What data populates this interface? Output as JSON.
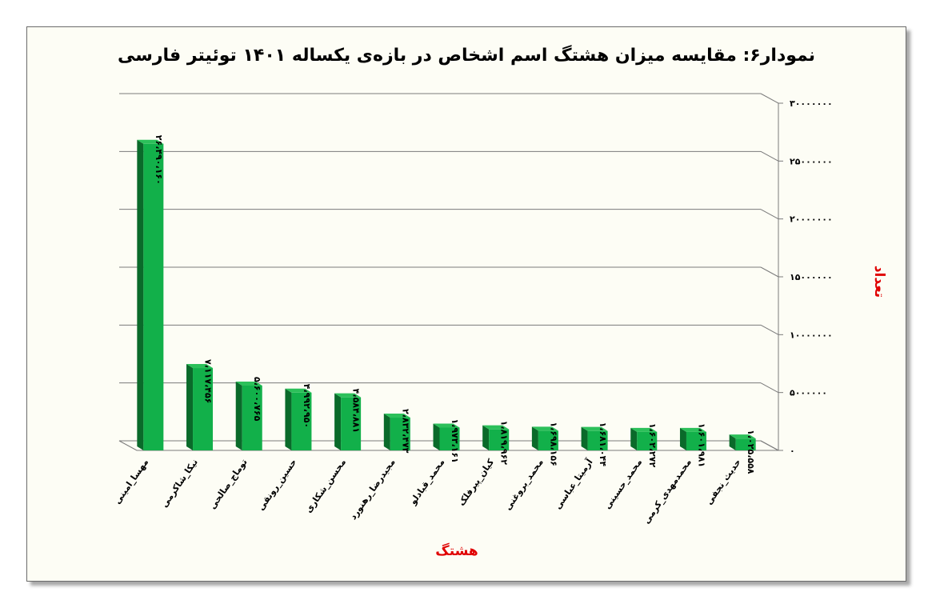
{
  "chart_data": {
    "type": "bar",
    "title": "نمودار۶: مقایسه میزان هشتگ اسم اشخاص در بازه‌ی یکساله ۱۴۰۱ توئیتر فارسی",
    "xlabel": "هشتگ",
    "ylabel": "تعداد",
    "ylim": [
      0,
      30000000
    ],
    "yticks": [
      0,
      5000000,
      10000000,
      15000000,
      20000000,
      25000000,
      30000000
    ],
    "ytick_labels": [
      "۰",
      "۵۰۰۰۰۰۰",
      "۱۰۰۰۰۰۰۰",
      "۱۵۰۰۰۰۰۰",
      "۲۰۰۰۰۰۰۰",
      "۲۵۰۰۰۰۰۰",
      "۳۰۰۰۰۰۰۰"
    ],
    "categories": [
      "مهسا_امینی",
      "نیکا_شاکرمی",
      "توماج_صالحی",
      "حسین_رونقی",
      "محسن_شکاری",
      "مجیدرضا_رهنورد",
      "محمد_قبادلو",
      "کیان_پیرفلک",
      "محمد_بروغنی",
      "آرمیتا_عباسی",
      "محمد_حسینی",
      "محمدمهدی_کرمی",
      "حدیث_نجفی"
    ],
    "values": [
      26490160,
      7117456,
      5600765,
      4992950,
      4584881,
      2832473,
      1973161,
      1819962,
      1698156,
      1681044,
      1602272,
      1601981,
      1025558
    ],
    "value_labels": [
      "۲۶،۴۹۰،۱۶۰",
      "۷،۱۱۷،۴۵۶",
      "۵،۶۰۰،۷۶۵",
      "۴،۹۹۲،۹۵۰",
      "۴،۵۸۴،۸۸۱",
      "۲،۸۳۲،۴۷۳",
      "۱،۹۷۳،۱۶۱",
      "۱،۸۱۹،۹۶۲",
      "۱،۶۹۸،۱۵۶",
      "۱،۶۸۱،۰۴۴",
      "۱،۶۰۲،۲۷۲",
      "۱،۶۰۱،۹۸۱",
      "۱،۰۲۵،۵۵۸"
    ],
    "grid": true,
    "legend": "none",
    "colors": {
      "bar_front": "#12b04a",
      "bar_side": "#0a6a2a",
      "bar_top": "#2cc05a",
      "grid": "#7a7a7a",
      "axis_title": "#e00000"
    }
  }
}
